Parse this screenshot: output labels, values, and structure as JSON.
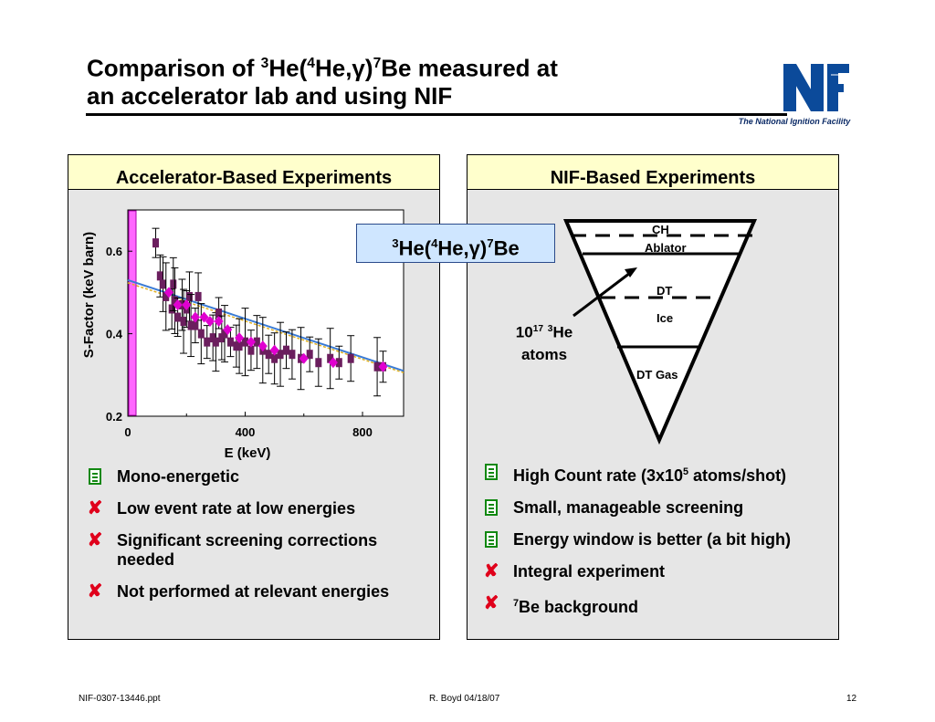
{
  "slide": {
    "title_line1_pre": "Comparison of ",
    "title_sup1": "3",
    "title_mid1": "He(",
    "title_sup2": "4",
    "title_mid2": "He,",
    "title_gamma": "γ",
    "title_mid3": ")",
    "title_sup3": "7",
    "title_post": "Be measured at",
    "title_line2": "an accelerator lab and using NIF"
  },
  "logo": {
    "text": "NF",
    "subtitle": "The National Ignition Facility",
    "color": "#0b4a9a"
  },
  "left_panel": {
    "header": "Accelerator-Based Experiments",
    "bullets": [
      {
        "icon": "checklist-icon",
        "text": "Mono-energetic"
      },
      {
        "icon": "x-icon",
        "text": "Low event rate at low energies"
      },
      {
        "icon": "x-icon",
        "text": "Significant screening corrections needed"
      },
      {
        "icon": "x-icon",
        "text": "Not performed at relevant energies"
      }
    ]
  },
  "right_panel": {
    "header": "NIF-Based Experiments",
    "bullets_0_pre": "High Count rate (3x10",
    "bullets_0_sup": "5",
    "bullets_0_post": " atoms/shot)",
    "bullets_1": "Small, manageable screening",
    "bullets_2": "Energy window is better (a bit high)",
    "bullets_3": "Integral experiment",
    "bullets_4_sup": "7",
    "bullets_4_post": "Be background"
  },
  "reaction_label": {
    "s1": "3",
    "a": "He(",
    "s2": "4",
    "b": "He,",
    "g": "γ",
    "c": ")",
    "s3": "7",
    "d": "Be"
  },
  "capsule": {
    "ch": "CH",
    "ablator": "Ablator",
    "dt": "DT",
    "ice": "Ice",
    "dt_gas": "DT Gas",
    "atoms_pre": "10",
    "atoms_sup1": "17",
    "atoms_sup2": "3",
    "atoms_mid": "He",
    "atoms_line2": "atoms"
  },
  "chart_data": {
    "type": "scatter",
    "xlabel": "E (keV)",
    "ylabel": "S-Factor (keV barn)",
    "xlim": [
      0,
      940
    ],
    "ylim": [
      0.2,
      0.7
    ],
    "xticks": [
      "0",
      "400",
      "800"
    ],
    "yticks": [
      "0.2",
      "0.4",
      "0.6"
    ],
    "series": [
      {
        "color": "#6b1e5e",
        "x": [
          95,
          110,
          120,
          130,
          150,
          155,
          160,
          170,
          185,
          190,
          200,
          210,
          215,
          230,
          240,
          250,
          270,
          290,
          300,
          310,
          320,
          330,
          350,
          370,
          380,
          400,
          420,
          440,
          460,
          480,
          500,
          520,
          540,
          560,
          590,
          620,
          650,
          690,
          720,
          760,
          850,
          870
        ],
        "y": [
          0.62,
          0.54,
          0.52,
          0.49,
          0.46,
          0.52,
          0.48,
          0.44,
          0.47,
          0.43,
          0.46,
          0.49,
          0.42,
          0.42,
          0.49,
          0.4,
          0.38,
          0.39,
          0.38,
          0.45,
          0.39,
          0.4,
          0.38,
          0.37,
          0.37,
          0.38,
          0.36,
          0.38,
          0.36,
          0.35,
          0.34,
          0.35,
          0.36,
          0.35,
          0.34,
          0.35,
          0.33,
          0.34,
          0.33,
          0.34,
          0.32,
          0.32
        ]
      },
      {
        "color": "#e000d0",
        "x": [
          140,
          170,
          200,
          230,
          260,
          280,
          310,
          340,
          380,
          420,
          460,
          500,
          600,
          700,
          870
        ],
        "y": [
          0.5,
          0.47,
          0.47,
          0.44,
          0.44,
          0.43,
          0.43,
          0.41,
          0.39,
          0.38,
          0.37,
          0.36,
          0.34,
          0.33,
          0.32
        ]
      }
    ],
    "fit": {
      "x": [
        0,
        940
      ],
      "y": [
        0.53,
        0.31
      ]
    }
  },
  "footer": {
    "left": "NIF-0307-13446.ppt",
    "center": "R. Boyd 04/18/07",
    "right": "12"
  }
}
